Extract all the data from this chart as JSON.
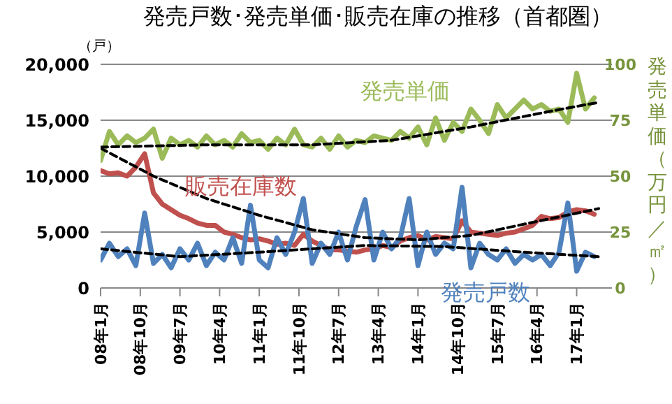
{
  "chart_data": {
    "type": "line",
    "title": "発売戸数･発売単価･販売在庫の推移（首都圏）",
    "ylabel": "（戸）",
    "y2label": "発売単価（万円／㎡）",
    "x": [
      "2008-01",
      "2008-03",
      "2008-05",
      "2008-07",
      "2008-09",
      "2008-11",
      "2009-01",
      "2009-03",
      "2009-05",
      "2009-07",
      "2009-09",
      "2009-11",
      "2010-01",
      "2010-03",
      "2010-05",
      "2010-07",
      "2010-09",
      "2010-11",
      "2011-01",
      "2011-03",
      "2011-05",
      "2011-07",
      "2011-09",
      "2011-11",
      "2012-01",
      "2012-03",
      "2012-05",
      "2012-07",
      "2012-09",
      "2012-11",
      "2013-01",
      "2013-03",
      "2013-05",
      "2013-07",
      "2013-09",
      "2013-11",
      "2014-01",
      "2014-03",
      "2014-05",
      "2014-07",
      "2014-09",
      "2014-11",
      "2015-01",
      "2015-03",
      "2015-05",
      "2015-07",
      "2015-09",
      "2015-11",
      "2016-01",
      "2016-03",
      "2016-05",
      "2016-07",
      "2016-09",
      "2016-11",
      "2017-01",
      "2017-03",
      "2017-05"
    ],
    "series": [
      {
        "name": "発売単価",
        "color": "#9bbb59",
        "axis": "y2",
        "values": [
          57,
          70,
          64,
          68,
          65,
          67,
          71,
          58,
          67,
          64,
          66,
          63,
          68,
          64,
          66,
          63,
          69,
          65,
          66,
          62,
          67,
          64,
          71,
          64,
          63,
          67,
          62,
          68,
          63,
          66,
          65,
          68,
          67,
          66,
          70,
          67,
          72,
          64,
          76,
          66,
          74,
          70,
          80,
          75,
          69,
          82,
          76,
          80,
          84,
          80,
          82,
          79,
          80,
          74,
          96,
          80,
          85
        ]
      },
      {
        "name": "販売在庫数",
        "color": "#c0504d",
        "values": [
          10500,
          10200,
          10300,
          10000,
          10800,
          12000,
          8500,
          7500,
          7000,
          6500,
          6200,
          5800,
          5600,
          5600,
          5000,
          4800,
          4500,
          4300,
          4400,
          4200,
          3900,
          4000,
          3800,
          4800,
          4200,
          3800,
          3400,
          3400,
          3300,
          3200,
          3400,
          3500,
          3800,
          3600,
          4200,
          4500,
          4700,
          4300,
          4600,
          4500,
          4400,
          6000,
          5000,
          4900,
          4800,
          4700,
          4900,
          5000,
          5300,
          5600,
          6400,
          6200,
          6300,
          6800,
          7000,
          6900,
          6600
        ]
      },
      {
        "name": "発売戸数",
        "color": "#4f81bd",
        "values": [
          2500,
          4000,
          2800,
          3500,
          2000,
          6700,
          2200,
          3000,
          1800,
          3500,
          2500,
          4000,
          2000,
          3200,
          2500,
          4500,
          2200,
          7400,
          2500,
          1800,
          4500,
          3000,
          5000,
          8000,
          2200,
          4000,
          3000,
          5000,
          2500,
          5500,
          7900,
          2500,
          5000,
          3500,
          4500,
          8000,
          2000,
          5000,
          3000,
          4000,
          3500,
          9000,
          1800,
          4000,
          3000,
          2500,
          3500,
          2200,
          3000,
          2500,
          3000,
          2000,
          3200,
          7600,
          1500,
          3200,
          2800
        ]
      },
      {
        "color": "#000000",
        "axis": "y2",
        "line_style": "dashed",
        "x": [
          "2008-01",
          "2010-01",
          "2012-01",
          "2013-07",
          "2015-01",
          "2016-07",
          "2017-06"
        ],
        "values": [
          63,
          64,
          64,
          66,
          72,
          79,
          83
        ]
      },
      {
        "color": "#000000",
        "line_style": "dashed",
        "x": [
          "2008-01",
          "2009-01",
          "2010-01",
          "2011-01",
          "2012-01",
          "2013-01",
          "2014-01",
          "2015-01",
          "2016-01",
          "2017-06"
        ],
        "values": [
          12500,
          10000,
          8000,
          6500,
          5200,
          4500,
          4300,
          4700,
          5700,
          7100
        ]
      },
      {
        "color": "#000000",
        "line_style": "dashed",
        "x": [
          "2008-01",
          "2009-07",
          "2011-01",
          "2013-01",
          "2014-07",
          "2016-01",
          "2017-06"
        ],
        "values": [
          3500,
          2800,
          3200,
          3800,
          3700,
          3200,
          2800
        ]
      }
    ],
    "xlim": [
      "2008-01",
      "2017-09"
    ],
    "xticks": [
      {
        "value": "2008-01",
        "label": "08年1月"
      },
      {
        "value": "2008-10",
        "label": "08年10月"
      },
      {
        "value": "2009-07",
        "label": "09年7月"
      },
      {
        "value": "2010-04",
        "label": "10年4月"
      },
      {
        "value": "2011-01",
        "label": "11年1月"
      },
      {
        "value": "2011-10",
        "label": "11年10月"
      },
      {
        "value": "2012-07",
        "label": "12年7月"
      },
      {
        "value": "2013-04",
        "label": "13年4月"
      },
      {
        "value": "2014-01",
        "label": "14年1月"
      },
      {
        "value": "2014-10",
        "label": "14年10月"
      },
      {
        "value": "2015-07",
        "label": "15年7月"
      },
      {
        "value": "2016-04",
        "label": "16年4月"
      },
      {
        "value": "2017-01",
        "label": "17年1月"
      }
    ],
    "ylim": [
      0,
      20000
    ],
    "yticks": [
      {
        "value": 0,
        "label": "0"
      },
      {
        "value": 5000,
        "label": "5,000"
      },
      {
        "value": 10000,
        "label": "10,000"
      },
      {
        "value": 15000,
        "label": "15,000"
      },
      {
        "value": 20000,
        "label": "20,000"
      }
    ],
    "y2lim": [
      0,
      100
    ],
    "y2ticks": [
      0,
      25,
      50,
      75,
      100
    ],
    "grid": "y",
    "legend": false,
    "marker": "none",
    "line_style": "solid"
  }
}
